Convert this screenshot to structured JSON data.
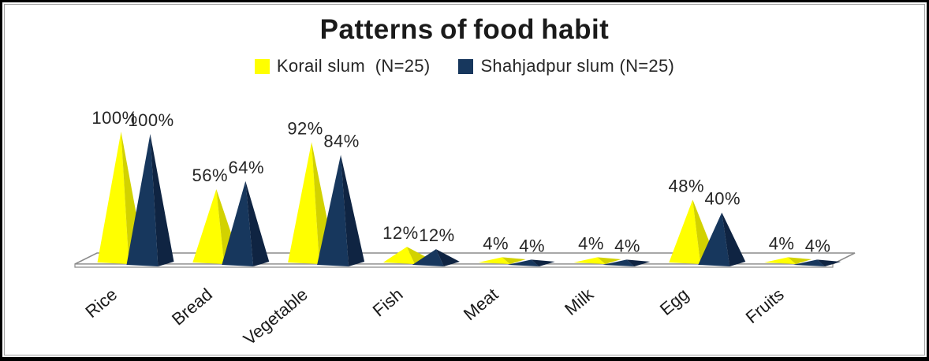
{
  "window": {
    "background": "#ffffff",
    "outer_border_color": "#000000",
    "inner_border_color": "#a3a3a3"
  },
  "chart": {
    "title": "Patterns of food habit",
    "legend": {
      "items": [
        {
          "label": "Korail slum  (N=25)",
          "color": "#ffff00"
        },
        {
          "label": "Shahjadpur slum (N=25)",
          "color": "#17375d"
        }
      ]
    }
  },
  "chart_data": {
    "type": "bar",
    "subtype": "3d-pyramid-clustered",
    "title": "Patterns of food habit",
    "categories": [
      "Rice",
      "Bread",
      "Vegetable",
      "Fish",
      "Meat",
      "Milk",
      "Egg",
      "Fruits"
    ],
    "series": [
      {
        "name": "Korail slum  (N=25)",
        "color": "#ffff00",
        "shade_color": "#d2d200",
        "values": [
          100,
          56,
          92,
          12,
          4,
          4,
          48,
          4
        ]
      },
      {
        "name": "Shahjadpur slum (N=25)",
        "color": "#17375d",
        "shade_color": "#0f2442",
        "values": [
          100,
          64,
          84,
          12,
          4,
          4,
          40,
          4
        ]
      }
    ],
    "value_suffix": "%",
    "data_labels": true,
    "data_label_color": "#262626",
    "axis_color": "#8c8c8c",
    "category_label_color": "#1a1a1a",
    "ylim": [
      0,
      100
    ],
    "grid": false,
    "legend_position": "top",
    "y_axis_visible": false
  }
}
